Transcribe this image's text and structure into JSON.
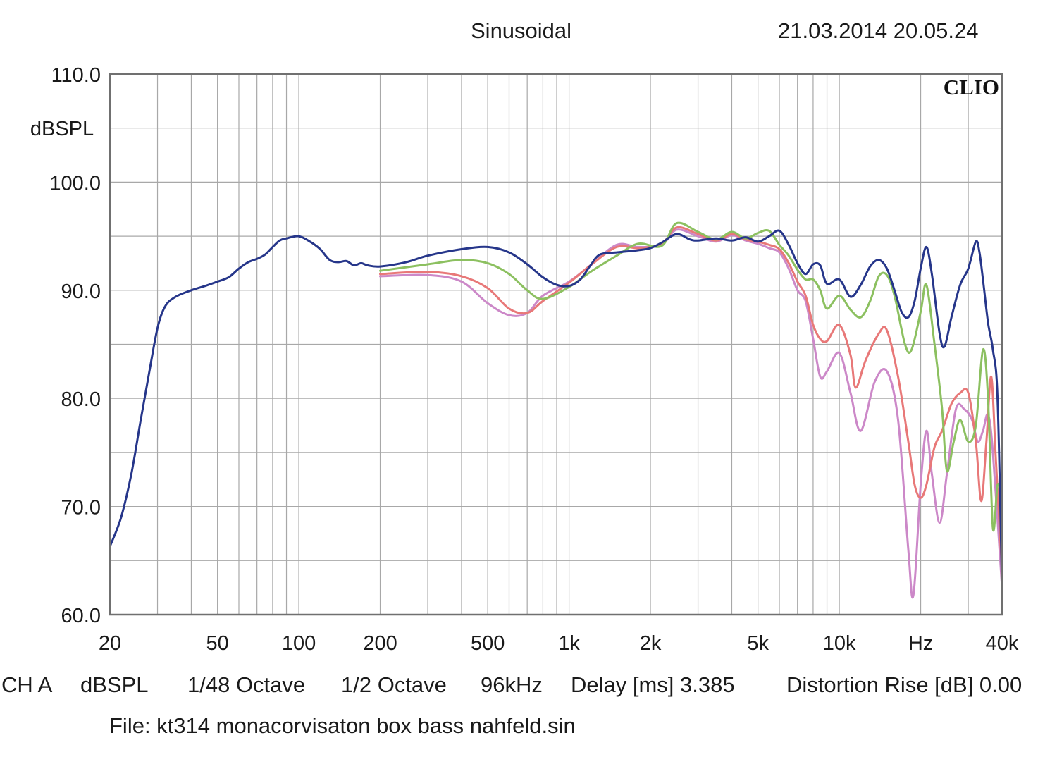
{
  "header": {
    "mode": "Sinusoidal",
    "datetime": "21.03.2014 20.05.24"
  },
  "watermark": "CLIO",
  "footer": {
    "channel": "CH A",
    "unit": "dBSPL",
    "resolution": "1/48 Octave",
    "smoothing": "1/2 Octave",
    "sample_rate": "96kHz",
    "delay": "Delay [ms] 3.385",
    "distortion": "Distortion Rise [dB] 0.00",
    "file": "File: kt314 monacorvisaton box bass nahfeld.sin"
  },
  "colors": {
    "background": "#ffffff",
    "grid": "#a8a8a8",
    "frame": "#707070",
    "text": "#1a1a1a"
  },
  "chart_data": {
    "type": "line",
    "title": "",
    "xlabel": "Hz",
    "ylabel": "dBSPL",
    "x_scale": "log",
    "xlim": [
      20,
      40000
    ],
    "ylim": [
      60,
      110
    ],
    "grid": true,
    "x_ticks": [
      {
        "value": 20,
        "label": "20"
      },
      {
        "value": 50,
        "label": "50"
      },
      {
        "value": 100,
        "label": "100"
      },
      {
        "value": 200,
        "label": "200"
      },
      {
        "value": 500,
        "label": "500"
      },
      {
        "value": 1000,
        "label": "1k"
      },
      {
        "value": 2000,
        "label": "2k"
      },
      {
        "value": 5000,
        "label": "5k"
      },
      {
        "value": 10000,
        "label": "10k"
      },
      {
        "value": 20000,
        "label": "Hz"
      },
      {
        "value": 40000,
        "label": "40k"
      }
    ],
    "y_ticks": [
      {
        "value": 110,
        "label": "110.0"
      },
      {
        "value": 100,
        "label": "100.0"
      },
      {
        "value": 90,
        "label": "90.0"
      },
      {
        "value": 80,
        "label": "80.0"
      },
      {
        "value": 70,
        "label": "70.0"
      },
      {
        "value": 60,
        "label": "60.0"
      }
    ],
    "series": [
      {
        "color": "#cc88c8",
        "points": [
          [
            200,
            91.3
          ],
          [
            300,
            91.4
          ],
          [
            400,
            90.8
          ],
          [
            500,
            88.8
          ],
          [
            600,
            87.7
          ],
          [
            700,
            87.9
          ],
          [
            800,
            89.5
          ],
          [
            1000,
            90.8
          ],
          [
            1200,
            92.3
          ],
          [
            1500,
            94.2
          ],
          [
            1800,
            94.0
          ],
          [
            2200,
            94.2
          ],
          [
            2500,
            95.6
          ],
          [
            3000,
            95.0
          ],
          [
            3500,
            94.5
          ],
          [
            4000,
            95.1
          ],
          [
            4500,
            94.6
          ],
          [
            5000,
            94.3
          ],
          [
            5500,
            93.9
          ],
          [
            6000,
            93.5
          ],
          [
            6500,
            92.0
          ],
          [
            7000,
            90.0
          ],
          [
            7500,
            89.0
          ],
          [
            8000,
            85.5
          ],
          [
            8500,
            82.0
          ],
          [
            9000,
            82.5
          ],
          [
            10000,
            84.2
          ],
          [
            11000,
            80.5
          ],
          [
            12000,
            77.0
          ],
          [
            13500,
            81.5
          ],
          [
            15000,
            82.5
          ],
          [
            16500,
            78.0
          ],
          [
            18000,
            66.0
          ],
          [
            18800,
            61.8
          ],
          [
            20000,
            72.0
          ],
          [
            21000,
            77.0
          ],
          [
            22000,
            73.0
          ],
          [
            23500,
            68.5
          ],
          [
            25000,
            73.0
          ],
          [
            27000,
            79.0
          ],
          [
            29000,
            79.0
          ],
          [
            31000,
            78.0
          ],
          [
            32500,
            76.0
          ],
          [
            34000,
            77.0
          ],
          [
            35500,
            78.5
          ],
          [
            37000,
            75.0
          ],
          [
            40000,
            62.5
          ]
        ]
      },
      {
        "color": "#e87878",
        "points": [
          [
            200,
            91.5
          ],
          [
            300,
            91.7
          ],
          [
            400,
            91.3
          ],
          [
            500,
            90.2
          ],
          [
            600,
            88.3
          ],
          [
            700,
            87.9
          ],
          [
            800,
            89.0
          ],
          [
            1000,
            90.7
          ],
          [
            1200,
            92.3
          ],
          [
            1500,
            94.0
          ],
          [
            1800,
            93.9
          ],
          [
            2200,
            94.3
          ],
          [
            2500,
            95.8
          ],
          [
            3000,
            95.2
          ],
          [
            3500,
            94.6
          ],
          [
            4000,
            95.2
          ],
          [
            4500,
            94.7
          ],
          [
            5000,
            94.5
          ],
          [
            5500,
            94.2
          ],
          [
            6000,
            93.8
          ],
          [
            6500,
            92.5
          ],
          [
            7000,
            90.8
          ],
          [
            7500,
            89.5
          ],
          [
            8000,
            86.8
          ],
          [
            8500,
            85.5
          ],
          [
            9000,
            85.3
          ],
          [
            10000,
            86.8
          ],
          [
            11000,
            84.0
          ],
          [
            11500,
            81.0
          ],
          [
            12500,
            83.5
          ],
          [
            14000,
            86.0
          ],
          [
            15000,
            86.3
          ],
          [
            16500,
            82.0
          ],
          [
            18000,
            76.0
          ],
          [
            19000,
            72.0
          ],
          [
            20000,
            70.8
          ],
          [
            21000,
            72.0
          ],
          [
            22500,
            75.5
          ],
          [
            24000,
            77.0
          ],
          [
            26000,
            79.5
          ],
          [
            28000,
            80.5
          ],
          [
            30000,
            80.5
          ],
          [
            32000,
            76.0
          ],
          [
            33500,
            70.5
          ],
          [
            35000,
            76.0
          ],
          [
            36500,
            82.0
          ],
          [
            38000,
            74.0
          ],
          [
            40000,
            64.0
          ]
        ]
      },
      {
        "color": "#8cc060",
        "points": [
          [
            200,
            91.8
          ],
          [
            300,
            92.4
          ],
          [
            400,
            92.8
          ],
          [
            500,
            92.5
          ],
          [
            600,
            91.5
          ],
          [
            700,
            90.0
          ],
          [
            800,
            89.2
          ],
          [
            1000,
            90.3
          ],
          [
            1200,
            91.7
          ],
          [
            1500,
            93.2
          ],
          [
            1800,
            94.3
          ],
          [
            2200,
            94.1
          ],
          [
            2500,
            96.2
          ],
          [
            3000,
            95.4
          ],
          [
            3500,
            94.7
          ],
          [
            4000,
            95.4
          ],
          [
            4500,
            94.8
          ],
          [
            5000,
            95.3
          ],
          [
            5500,
            95.5
          ],
          [
            6000,
            94.2
          ],
          [
            6500,
            93.2
          ],
          [
            7000,
            91.9
          ],
          [
            7500,
            91.0
          ],
          [
            8000,
            91.0
          ],
          [
            8500,
            90.0
          ],
          [
            9000,
            88.3
          ],
          [
            10000,
            89.5
          ],
          [
            11000,
            88.2
          ],
          [
            12000,
            87.5
          ],
          [
            13000,
            89.0
          ],
          [
            14000,
            91.3
          ],
          [
            15000,
            91.4
          ],
          [
            16000,
            89.5
          ],
          [
            17500,
            85.0
          ],
          [
            18500,
            84.5
          ],
          [
            20000,
            88.0
          ],
          [
            21000,
            90.5
          ],
          [
            22500,
            85.0
          ],
          [
            24000,
            79.0
          ],
          [
            25000,
            73.3
          ],
          [
            26500,
            76.0
          ],
          [
            28000,
            78.0
          ],
          [
            30000,
            76.0
          ],
          [
            32000,
            77.5
          ],
          [
            34000,
            84.5
          ],
          [
            35500,
            80.0
          ],
          [
            37000,
            68.0
          ],
          [
            38500,
            72.0
          ],
          [
            40000,
            70.8
          ]
        ]
      },
      {
        "color": "#26368a",
        "points": [
          [
            20,
            66.3
          ],
          [
            22,
            69.0
          ],
          [
            24,
            73.0
          ],
          [
            26,
            78.0
          ],
          [
            28,
            82.5
          ],
          [
            30,
            86.5
          ],
          [
            32,
            88.5
          ],
          [
            35,
            89.4
          ],
          [
            40,
            90.0
          ],
          [
            45,
            90.4
          ],
          [
            50,
            90.8
          ],
          [
            55,
            91.2
          ],
          [
            60,
            92.0
          ],
          [
            65,
            92.6
          ],
          [
            70,
            92.9
          ],
          [
            75,
            93.3
          ],
          [
            80,
            94.0
          ],
          [
            85,
            94.6
          ],
          [
            90,
            94.8
          ],
          [
            100,
            95.0
          ],
          [
            110,
            94.5
          ],
          [
            120,
            93.8
          ],
          [
            130,
            92.8
          ],
          [
            140,
            92.6
          ],
          [
            150,
            92.7
          ],
          [
            160,
            92.3
          ],
          [
            170,
            92.5
          ],
          [
            180,
            92.3
          ],
          [
            200,
            92.2
          ],
          [
            250,
            92.6
          ],
          [
            300,
            93.2
          ],
          [
            400,
            93.8
          ],
          [
            500,
            94.0
          ],
          [
            600,
            93.5
          ],
          [
            700,
            92.4
          ],
          [
            800,
            91.2
          ],
          [
            900,
            90.5
          ],
          [
            1000,
            90.4
          ],
          [
            1100,
            91.0
          ],
          [
            1200,
            92.3
          ],
          [
            1300,
            93.3
          ],
          [
            1500,
            93.5
          ],
          [
            1800,
            93.7
          ],
          [
            2000,
            93.9
          ],
          [
            2200,
            94.4
          ],
          [
            2500,
            95.2
          ],
          [
            2800,
            94.7
          ],
          [
            3000,
            94.6
          ],
          [
            3500,
            94.8
          ],
          [
            4000,
            94.6
          ],
          [
            4500,
            94.9
          ],
          [
            5000,
            94.5
          ],
          [
            5500,
            95.0
          ],
          [
            6000,
            95.5
          ],
          [
            6500,
            94.2
          ],
          [
            7000,
            92.5
          ],
          [
            7500,
            91.5
          ],
          [
            8000,
            92.4
          ],
          [
            8500,
            92.3
          ],
          [
            9000,
            90.6
          ],
          [
            10000,
            91.0
          ],
          [
            11000,
            89.4
          ],
          [
            12000,
            90.5
          ],
          [
            13000,
            92.2
          ],
          [
            14000,
            92.8
          ],
          [
            15000,
            92.0
          ],
          [
            16000,
            90.0
          ],
          [
            17000,
            88.0
          ],
          [
            18000,
            87.5
          ],
          [
            19000,
            89.0
          ],
          [
            20000,
            92.0
          ],
          [
            21000,
            94.0
          ],
          [
            22000,
            91.5
          ],
          [
            23500,
            86.0
          ],
          [
            24500,
            84.8
          ],
          [
            26000,
            87.5
          ],
          [
            28000,
            90.5
          ],
          [
            30000,
            92.0
          ],
          [
            32000,
            94.5
          ],
          [
            33000,
            93.5
          ],
          [
            34000,
            91.0
          ],
          [
            35500,
            87.0
          ],
          [
            37000,
            84.5
          ],
          [
            38500,
            80.0
          ],
          [
            40000,
            62.5
          ]
        ]
      }
    ]
  }
}
